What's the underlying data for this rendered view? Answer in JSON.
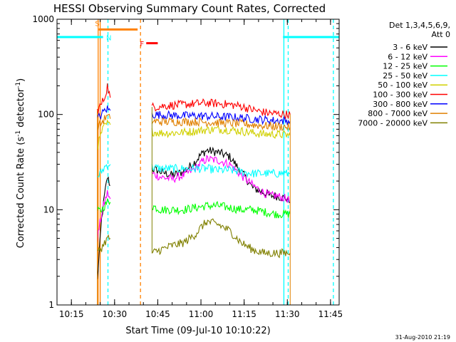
{
  "chart_data": {
    "type": "line",
    "title": "HESSI Observing Summary Count Rates, Corrected",
    "xlabel": "Start Time (09-Jul-10 10:10:22)",
    "ylabel": "Corrected Count Rate (s",
    "ylabel_sup": "-1",
    "ylabel_rest": " detector",
    "ylabel_sup2": "-1",
    "ylabel_end": ")",
    "x_unit": "minutes after 10:10 UT",
    "xlim": [
      0,
      98
    ],
    "ylim": [
      1,
      1000
    ],
    "yscale": "log",
    "grid": false,
    "x_ticks": [
      {
        "v": 5,
        "label": "10:15"
      },
      {
        "v": 20,
        "label": "10:30"
      },
      {
        "v": 35,
        "label": "10:45"
      },
      {
        "v": 50,
        "label": "11:00"
      },
      {
        "v": 65,
        "label": "11:15"
      },
      {
        "v": 80,
        "label": "11:30"
      },
      {
        "v": 95,
        "label": "11:45"
      }
    ],
    "y_ticks": [
      {
        "v": 1,
        "label": "1"
      },
      {
        "v": 10,
        "label": "10"
      },
      {
        "v": 100,
        "label": "100"
      },
      {
        "v": 1000,
        "label": "1000"
      }
    ],
    "legend_title": "Det 1,3,4,5,6,9,",
    "legend_subtitle": "Att 0",
    "legend_position": "right",
    "series": [
      {
        "name": "3 - 6 keV",
        "color": "#000000",
        "x": [
          14,
          15.5,
          16.5,
          17.5,
          18.5,
          33,
          36,
          40,
          44,
          48,
          50,
          52,
          56,
          60,
          64,
          68,
          72,
          74,
          76,
          80,
          81
        ],
        "y": [
          1.8,
          8,
          14,
          22,
          18,
          27,
          25,
          23,
          25,
          32,
          38,
          42,
          40,
          36,
          25,
          17,
          15,
          14,
          14,
          13,
          12
        ]
      },
      {
        "name": "6 - 12 keV",
        "color": "#ff00ff",
        "x": [
          14,
          15.5,
          16.5,
          17.5,
          18.5,
          33,
          36,
          40,
          44,
          48,
          50,
          52,
          56,
          60,
          64,
          68,
          72,
          74,
          76,
          80,
          81
        ],
        "y": [
          5,
          9,
          12,
          15,
          13,
          24,
          22,
          21,
          23,
          27,
          31,
          34,
          33,
          30,
          23,
          18,
          15,
          14,
          14,
          13,
          12
        ]
      },
      {
        "name": "12 - 25 keV",
        "color": "#00ff00",
        "x": [
          14,
          15.5,
          16.5,
          17.5,
          18.5,
          33,
          36,
          40,
          44,
          48,
          52,
          56,
          60,
          64,
          68,
          72,
          76,
          80,
          81
        ],
        "y": [
          9.5,
          10,
          11,
          12,
          12,
          11,
          10,
          10,
          10,
          10.5,
          11,
          11,
          10.5,
          10,
          10,
          9.5,
          9,
          9,
          9
        ]
      },
      {
        "name": "25 - 50 keV",
        "color": "#00ffff",
        "x": [
          14,
          15.5,
          16.5,
          17.5,
          18.5,
          33,
          36,
          40,
          44,
          48,
          52,
          56,
          60,
          64,
          68,
          72,
          76,
          80,
          81
        ],
        "y": [
          22,
          25,
          28,
          30,
          30,
          28,
          27,
          27,
          27,
          27,
          27,
          26,
          26,
          25,
          24,
          24,
          24,
          24,
          24
        ]
      },
      {
        "name": "50 - 100 keV",
        "color": "#d0d000",
        "x": [
          14,
          15.5,
          16.5,
          17.5,
          18.5,
          33,
          36,
          40,
          44,
          48,
          52,
          56,
          60,
          64,
          68,
          72,
          76,
          80,
          81
        ],
        "y": [
          45,
          65,
          75,
          80,
          78,
          66,
          64,
          64,
          65,
          67,
          69,
          70,
          69,
          67,
          64,
          62,
          62,
          61,
          60
        ]
      },
      {
        "name": "100 - 300 keV",
        "color": "#ff0000",
        "x": [
          14,
          15.5,
          16.5,
          17.5,
          18.5,
          33,
          36,
          40,
          44,
          48,
          52,
          56,
          60,
          64,
          68,
          72,
          76,
          80,
          81
        ],
        "y": [
          110,
          130,
          150,
          200,
          150,
          120,
          122,
          125,
          127,
          130,
          132,
          130,
          127,
          122,
          112,
          105,
          102,
          100,
          100
        ]
      },
      {
        "name": "300 - 800 keV",
        "color": "#0000ff",
        "x": [
          14,
          15.5,
          16.5,
          17.5,
          18.5,
          33,
          36,
          40,
          44,
          48,
          52,
          56,
          60,
          64,
          68,
          72,
          76,
          80,
          81
        ],
        "y": [
          90,
          100,
          110,
          115,
          110,
          100,
          99,
          98,
          97,
          97,
          96,
          95,
          94,
          92,
          90,
          88,
          86,
          86,
          85
        ]
      },
      {
        "name": "800 - 7000 keV",
        "color": "#e08000",
        "x": [
          14,
          15.5,
          16.5,
          17.5,
          18.5,
          33,
          36,
          40,
          44,
          48,
          52,
          56,
          60,
          64,
          68,
          72,
          76,
          80,
          81
        ],
        "y": [
          75,
          82,
          90,
          95,
          90,
          85,
          84,
          84,
          84,
          84,
          83,
          82,
          81,
          80,
          78,
          76,
          75,
          74,
          73
        ]
      },
      {
        "name": "7000 - 20000 keV",
        "color": "#808000",
        "x": [
          14,
          15.5,
          16.5,
          17.5,
          18.5,
          33,
          36,
          40,
          44,
          48,
          50,
          52,
          56,
          60,
          64,
          68,
          72,
          76,
          80,
          81
        ],
        "y": [
          3.5,
          4,
          4.5,
          5,
          5,
          3.5,
          3.8,
          4.2,
          4.5,
          5.5,
          6.5,
          7.5,
          7,
          6,
          4.5,
          3.8,
          3.5,
          3.5,
          3.5,
          3.5
        ]
      }
    ],
    "attenuator_segments": [
      {
        "x": [
          0,
          16
        ],
        "y": 650,
        "color": "#00ffff"
      },
      {
        "x": [
          78.5,
          98
        ],
        "y": 650,
        "color": "#00ffff"
      }
    ],
    "saa_segment": {
      "x": [
        14.5,
        28
      ],
      "y": 780,
      "color": "#ff8000"
    },
    "flare_segment": {
      "x": [
        31,
        35
      ],
      "y": 560,
      "color": "#ff0000"
    },
    "vertical_markers": [
      {
        "x": 15,
        "color": "#ff8000",
        "style": "solid"
      },
      {
        "x": 14.3,
        "color": "#ff8000",
        "style": "solid"
      },
      {
        "x": 17.7,
        "color": "#00ffff",
        "style": "dashed"
      },
      {
        "x": 29,
        "color": "#ff8000",
        "style": "dashed"
      },
      {
        "x": 78.8,
        "color": "#00ffff",
        "style": "solid"
      },
      {
        "x": 80.3,
        "color": "#00ffff",
        "style": "dashed"
      },
      {
        "x": 96,
        "color": "#00ffff",
        "style": "dashed"
      }
    ],
    "annotations": [
      {
        "text": "S",
        "x": 14,
        "y": 850,
        "color": "#ff8000"
      },
      {
        "text": "N",
        "x": 18,
        "y": 600,
        "color": "#00ffff"
      },
      {
        "text": "F",
        "x": 29.5,
        "y": 520,
        "color": "#ff0000"
      }
    ],
    "timestamp": "31-Aug-2010 21:19"
  }
}
